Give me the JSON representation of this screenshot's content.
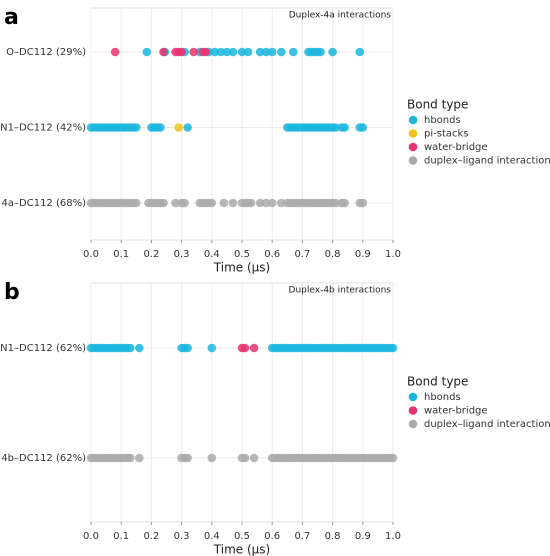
{
  "chart_data": [
    {
      "type": "scatter",
      "panel": "a",
      "title": "Duplex-4a interactions",
      "xlabel": "Time (µs)",
      "categories": [
        "O–DC112 (29%)",
        "N1–DC112 (42%)",
        "4a–DC112 (68%)"
      ],
      "xlim": [
        0,
        1
      ],
      "xticks": [
        {
          "value": 0,
          "label": "0.0"
        },
        0.1,
        0.2,
        0.3,
        0.4,
        0.5,
        0.6,
        0.7,
        0.8,
        0.9,
        {
          "value": 1,
          "label": "1.0"
        }
      ],
      "grid": true,
      "legend_title": "Bond type",
      "series": [
        {
          "name": "hbonds",
          "color": "#1bb6de",
          "x": [
            0.185,
            0.245,
            0.31,
            0.36,
            0.39,
            0.41,
            0.43,
            0.45,
            0.47,
            0.5,
            0.52,
            0.56,
            0.58,
            0.6,
            0.63,
            0.67,
            0.72,
            0.73,
            0.74,
            0.75,
            0.76,
            0.8,
            0.89,
            0,
            0.01,
            0.02,
            0.03,
            0.04,
            0.05,
            0.06,
            0.07,
            0.08,
            0.09,
            0.1,
            0.11,
            0.12,
            0.13,
            0.14,
            0.15,
            0.2,
            0.21,
            0.22,
            0.23,
            0.32,
            0.65,
            0.66,
            0.67,
            0.68,
            0.69,
            0.7,
            0.71,
            0.72,
            0.73,
            0.74,
            0.75,
            0.76,
            0.77,
            0.78,
            0.79,
            0.8,
            0.81,
            0.83,
            0.84,
            0.89,
            0.9
          ],
          "y": [
            "O–DC112 (29%)",
            "O–DC112 (29%)",
            "O–DC112 (29%)",
            "O–DC112 (29%)",
            "O–DC112 (29%)",
            "O–DC112 (29%)",
            "O–DC112 (29%)",
            "O–DC112 (29%)",
            "O–DC112 (29%)",
            "O–DC112 (29%)",
            "O–DC112 (29%)",
            "O–DC112 (29%)",
            "O–DC112 (29%)",
            "O–DC112 (29%)",
            "O–DC112 (29%)",
            "O–DC112 (29%)",
            "O–DC112 (29%)",
            "O–DC112 (29%)",
            "O–DC112 (29%)",
            "O–DC112 (29%)",
            "O–DC112 (29%)",
            "O–DC112 (29%)",
            "O–DC112 (29%)",
            "N1–DC112 (42%)",
            "N1–DC112 (42%)",
            "N1–DC112 (42%)",
            "N1–DC112 (42%)",
            "N1–DC112 (42%)",
            "N1–DC112 (42%)",
            "N1–DC112 (42%)",
            "N1–DC112 (42%)",
            "N1–DC112 (42%)",
            "N1–DC112 (42%)",
            "N1–DC112 (42%)",
            "N1–DC112 (42%)",
            "N1–DC112 (42%)",
            "N1–DC112 (42%)",
            "N1–DC112 (42%)",
            "N1–DC112 (42%)",
            "N1–DC112 (42%)",
            "N1–DC112 (42%)",
            "N1–DC112 (42%)",
            "N1–DC112 (42%)",
            "N1–DC112 (42%)",
            "N1–DC112 (42%)",
            "N1–DC112 (42%)",
            "N1–DC112 (42%)",
            "N1–DC112 (42%)",
            "N1–DC112 (42%)",
            "N1–DC112 (42%)",
            "N1–DC112 (42%)",
            "N1–DC112 (42%)",
            "N1–DC112 (42%)",
            "N1–DC112 (42%)",
            "N1–DC112 (42%)",
            "N1–DC112 (42%)",
            "N1–DC112 (42%)",
            "N1–DC112 (42%)",
            "N1–DC112 (42%)",
            "N1–DC112 (42%)",
            "N1–DC112 (42%)",
            "N1–DC112 (42%)",
            "N1–DC112 (42%)",
            "N1–DC112 (42%)",
            "N1–DC112 (42%)"
          ]
        },
        {
          "name": "pi-stacks",
          "color": "#f2c21b",
          "x": [
            0.29
          ],
          "y": [
            "N1–DC112 (42%)"
          ]
        },
        {
          "name": "water-bridge",
          "color": "#e8336e",
          "x": [
            0.08,
            0.24,
            0.28,
            0.29,
            0.3,
            0.34,
            0.37,
            0.38
          ],
          "y": [
            "O–DC112 (29%)",
            "O–DC112 (29%)",
            "O–DC112 (29%)",
            "O–DC112 (29%)",
            "O–DC112 (29%)",
            "O–DC112 (29%)",
            "O–DC112 (29%)",
            "O–DC112 (29%)"
          ]
        },
        {
          "name": "duplex–ligand interactions",
          "color": "#aaaaaa",
          "x": [
            0,
            0.01,
            0.02,
            0.03,
            0.04,
            0.05,
            0.06,
            0.07,
            0.08,
            0.09,
            0.1,
            0.11,
            0.12,
            0.13,
            0.14,
            0.15,
            0.19,
            0.2,
            0.21,
            0.22,
            0.23,
            0.24,
            0.28,
            0.3,
            0.31,
            0.36,
            0.37,
            0.38,
            0.39,
            0.4,
            0.44,
            0.47,
            0.5,
            0.51,
            0.52,
            0.53,
            0.56,
            0.58,
            0.6,
            0.63,
            0.65,
            0.66,
            0.67,
            0.68,
            0.69,
            0.7,
            0.71,
            0.72,
            0.73,
            0.74,
            0.75,
            0.76,
            0.77,
            0.78,
            0.79,
            0.8,
            0.81,
            0.83,
            0.84,
            0.89,
            0.9
          ],
          "y": [
            "4a–DC112 (68%)",
            "4a–DC112 (68%)",
            "4a–DC112 (68%)",
            "4a–DC112 (68%)",
            "4a–DC112 (68%)",
            "4a–DC112 (68%)",
            "4a–DC112 (68%)",
            "4a–DC112 (68%)",
            "4a–DC112 (68%)",
            "4a–DC112 (68%)",
            "4a–DC112 (68%)",
            "4a–DC112 (68%)",
            "4a–DC112 (68%)",
            "4a–DC112 (68%)",
            "4a–DC112 (68%)",
            "4a–DC112 (68%)",
            "4a–DC112 (68%)",
            "4a–DC112 (68%)",
            "4a–DC112 (68%)",
            "4a–DC112 (68%)",
            "4a–DC112 (68%)",
            "4a–DC112 (68%)",
            "4a–DC112 (68%)",
            "4a–DC112 (68%)",
            "4a–DC112 (68%)",
            "4a–DC112 (68%)",
            "4a–DC112 (68%)",
            "4a–DC112 (68%)",
            "4a–DC112 (68%)",
            "4a–DC112 (68%)",
            "4a–DC112 (68%)",
            "4a–DC112 (68%)",
            "4a–DC112 (68%)",
            "4a–DC112 (68%)",
            "4a–DC112 (68%)",
            "4a–DC112 (68%)",
            "4a–DC112 (68%)",
            "4a–DC112 (68%)",
            "4a–DC112 (68%)",
            "4a–DC112 (68%)",
            "4a–DC112 (68%)",
            "4a–DC112 (68%)",
            "4a–DC112 (68%)",
            "4a–DC112 (68%)",
            "4a–DC112 (68%)",
            "4a–DC112 (68%)",
            "4a–DC112 (68%)",
            "4a–DC112 (68%)",
            "4a–DC112 (68%)",
            "4a–DC112 (68%)",
            "4a–DC112 (68%)",
            "4a–DC112 (68%)",
            "4a–DC112 (68%)",
            "4a–DC112 (68%)",
            "4a–DC112 (68%)",
            "4a–DC112 (68%)",
            "4a–DC112 (68%)",
            "4a–DC112 (68%)",
            "4a–DC112 (68%)",
            "4a–DC112 (68%)",
            "4a–DC112 (68%)"
          ]
        }
      ]
    },
    {
      "type": "scatter",
      "panel": "b",
      "title": "Duplex-4b interactions",
      "xlabel": "Time (µs)",
      "categories": [
        "N1–DC112 (62%)",
        "4b–DC112 (62%)"
      ],
      "xlim": [
        0,
        1
      ],
      "xticks": [
        {
          "value": 0,
          "label": "0.0"
        },
        0.1,
        0.2,
        0.3,
        0.4,
        0.5,
        0.6,
        0.7,
        0.8,
        0.9,
        {
          "value": 1,
          "label": "1.0"
        }
      ],
      "grid": true,
      "legend_title": "Bond type",
      "series": [
        {
          "name": "hbonds",
          "color": "#1bb6de",
          "x": [
            0,
            0.01,
            0.02,
            0.03,
            0.04,
            0.05,
            0.06,
            0.07,
            0.08,
            0.09,
            0.1,
            0.11,
            0.12,
            0.13,
            0.16,
            0.3,
            0.31,
            0.32,
            0.4,
            0.6,
            0.61,
            0.62,
            0.63,
            0.64,
            0.65,
            0.66,
            0.67,
            0.68,
            0.69,
            0.7,
            0.71,
            0.72,
            0.73,
            0.74,
            0.75,
            0.76,
            0.77,
            0.78,
            0.79,
            0.8,
            0.81,
            0.82,
            0.83,
            0.84,
            0.85,
            0.86,
            0.87,
            0.88,
            0.89,
            0.9,
            0.91,
            0.92,
            0.93,
            0.94,
            0.95,
            0.96,
            0.97,
            0.98,
            0.99,
            1
          ],
          "y": [
            "N1–DC112 (62%)",
            "N1–DC112 (62%)",
            "N1–DC112 (62%)",
            "N1–DC112 (62%)",
            "N1–DC112 (62%)",
            "N1–DC112 (62%)",
            "N1–DC112 (62%)",
            "N1–DC112 (62%)",
            "N1–DC112 (62%)",
            "N1–DC112 (62%)",
            "N1–DC112 (62%)",
            "N1–DC112 (62%)",
            "N1–DC112 (62%)",
            "N1–DC112 (62%)",
            "N1–DC112 (62%)",
            "N1–DC112 (62%)",
            "N1–DC112 (62%)",
            "N1–DC112 (62%)",
            "N1–DC112 (62%)",
            "N1–DC112 (62%)",
            "N1–DC112 (62%)",
            "N1–DC112 (62%)",
            "N1–DC112 (62%)",
            "N1–DC112 (62%)",
            "N1–DC112 (62%)",
            "N1–DC112 (62%)",
            "N1–DC112 (62%)",
            "N1–DC112 (62%)",
            "N1–DC112 (62%)",
            "N1–DC112 (62%)",
            "N1–DC112 (62%)",
            "N1–DC112 (62%)",
            "N1–DC112 (62%)",
            "N1–DC112 (62%)",
            "N1–DC112 (62%)",
            "N1–DC112 (62%)",
            "N1–DC112 (62%)",
            "N1–DC112 (62%)",
            "N1–DC112 (62%)",
            "N1–DC112 (62%)",
            "N1–DC112 (62%)",
            "N1–DC112 (62%)",
            "N1–DC112 (62%)",
            "N1–DC112 (62%)",
            "N1–DC112 (62%)",
            "N1–DC112 (62%)",
            "N1–DC112 (62%)",
            "N1–DC112 (62%)",
            "N1–DC112 (62%)",
            "N1–DC112 (62%)",
            "N1–DC112 (62%)",
            "N1–DC112 (62%)",
            "N1–DC112 (62%)",
            "N1–DC112 (62%)",
            "N1–DC112 (62%)",
            "N1–DC112 (62%)",
            "N1–DC112 (62%)",
            "N1–DC112 (62%)",
            "N1–DC112 (62%)",
            "N1–DC112 (62%)"
          ]
        },
        {
          "name": "water-bridge",
          "color": "#e8336e",
          "x": [
            0.5,
            0.51,
            0.54
          ],
          "y": [
            "N1–DC112 (62%)",
            "N1–DC112 (62%)",
            "N1–DC112 (62%)"
          ]
        },
        {
          "name": "duplex–ligand interactions",
          "color": "#aaaaaa",
          "x": [
            0,
            0.01,
            0.02,
            0.03,
            0.04,
            0.05,
            0.06,
            0.07,
            0.08,
            0.09,
            0.1,
            0.11,
            0.12,
            0.13,
            0.16,
            0.3,
            0.31,
            0.32,
            0.4,
            0.5,
            0.51,
            0.54,
            0.6,
            0.61,
            0.62,
            0.63,
            0.64,
            0.65,
            0.66,
            0.67,
            0.68,
            0.69,
            0.7,
            0.71,
            0.72,
            0.73,
            0.74,
            0.75,
            0.76,
            0.77,
            0.78,
            0.79,
            0.8,
            0.81,
            0.82,
            0.83,
            0.84,
            0.85,
            0.86,
            0.87,
            0.88,
            0.89,
            0.9,
            0.91,
            0.92,
            0.93,
            0.94,
            0.95,
            0.96,
            0.97,
            0.98,
            0.99,
            1
          ],
          "y": [
            "4b–DC112 (62%)",
            "4b–DC112 (62%)",
            "4b–DC112 (62%)",
            "4b–DC112 (62%)",
            "4b–DC112 (62%)",
            "4b–DC112 (62%)",
            "4b–DC112 (62%)",
            "4b–DC112 (62%)",
            "4b–DC112 (62%)",
            "4b–DC112 (62%)",
            "4b–DC112 (62%)",
            "4b–DC112 (62%)",
            "4b–DC112 (62%)",
            "4b–DC112 (62%)",
            "4b–DC112 (62%)",
            "4b–DC112 (62%)",
            "4b–DC112 (62%)",
            "4b–DC112 (62%)",
            "4b–DC112 (62%)",
            "4b–DC112 (62%)",
            "4b–DC112 (62%)",
            "4b–DC112 (62%)",
            "4b–DC112 (62%)",
            "4b–DC112 (62%)",
            "4b–DC112 (62%)",
            "4b–DC112 (62%)",
            "4b–DC112 (62%)",
            "4b–DC112 (62%)",
            "4b–DC112 (62%)",
            "4b–DC112 (62%)",
            "4b–DC112 (62%)",
            "4b–DC112 (62%)",
            "4b–DC112 (62%)",
            "4b–DC112 (62%)",
            "4b–DC112 (62%)",
            "4b–DC112 (62%)",
            "4b–DC112 (62%)",
            "4b–DC112 (62%)",
            "4b–DC112 (62%)",
            "4b–DC112 (62%)",
            "4b–DC112 (62%)",
            "4b–DC112 (62%)",
            "4b–DC112 (62%)",
            "4b–DC112 (62%)",
            "4b–DC112 (62%)",
            "4b–DC112 (62%)",
            "4b–DC112 (62%)",
            "4b–DC112 (62%)",
            "4b–DC112 (62%)",
            "4b–DC112 (62%)",
            "4b–DC112 (62%)",
            "4b–DC112 (62%)",
            "4b–DC112 (62%)",
            "4b–DC112 (62%)",
            "4b–DC112 (62%)",
            "4b–DC112 (62%)",
            "4b–DC112 (62%)",
            "4b–DC112 (62%)",
            "4b–DC112 (62%)",
            "4b–DC112 (62%)",
            "4b–DC112 (62%)",
            "4b–DC112 (62%)",
            "4b–DC112 (62%)"
          ]
        }
      ]
    }
  ]
}
